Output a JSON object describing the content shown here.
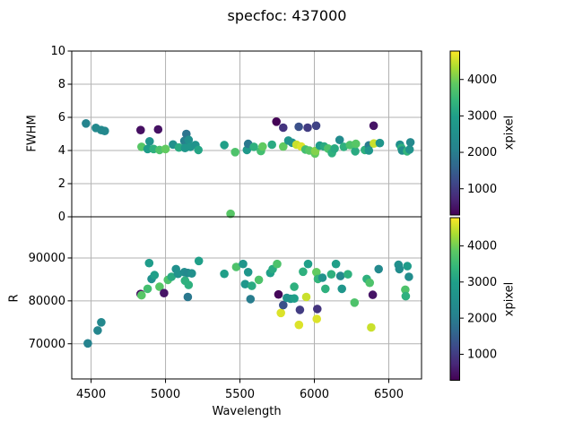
{
  "figure": {
    "title": "specfoc: 437000",
    "background": "#ffffff"
  },
  "colors": {
    "grid": "#b2b2b2",
    "spine": "#000000",
    "text": "#000000",
    "viridis_stops": [
      [
        0.0,
        "#440154"
      ],
      [
        0.1,
        "#482878"
      ],
      [
        0.2,
        "#3e4989"
      ],
      [
        0.3,
        "#31688e"
      ],
      [
        0.4,
        "#26828e"
      ],
      [
        0.5,
        "#21918c"
      ],
      [
        0.6,
        "#1f9e89"
      ],
      [
        0.7,
        "#35b779"
      ],
      [
        0.8,
        "#5ec962"
      ],
      [
        0.9,
        "#aadc32"
      ],
      [
        1.0,
        "#fde725"
      ]
    ]
  },
  "chart_data": [
    {
      "type": "scatter",
      "panel": "top",
      "xlabel": "Wavelength",
      "ylabel": "FWHM",
      "xlim": [
        4370,
        6720
      ],
      "ylim": [
        0,
        10
      ],
      "xticks": [
        4500,
        5000,
        5500,
        6000,
        6500
      ],
      "yticks": [
        0,
        2,
        4,
        6,
        8,
        10
      ],
      "show_x_tick_labels": false,
      "grid": true,
      "marker_radius": 4.8,
      "colorbar": {
        "label": "xpixel",
        "ticks": [
          1000,
          2000,
          3000,
          4000
        ],
        "vmin": 280,
        "vmax": 4780,
        "cmap": "viridis"
      },
      "point_format": [
        "wavelength",
        "fwhm",
        "xpixel"
      ],
      "points": [
        [
          4466,
          5.63,
          2150
        ],
        [
          4532,
          5.36,
          2300
        ],
        [
          4568,
          5.23,
          2300
        ],
        [
          4592,
          5.18,
          2250
        ],
        [
          4833,
          5.23,
          450
        ],
        [
          4950,
          5.27,
          480
        ],
        [
          4839,
          4.22,
          3800
        ],
        [
          4880,
          4.09,
          2900
        ],
        [
          4893,
          4.55,
          2600
        ],
        [
          4920,
          4.09,
          3300
        ],
        [
          4960,
          4.03,
          3700
        ],
        [
          5000,
          4.09,
          3900
        ],
        [
          5050,
          4.36,
          2500
        ],
        [
          5090,
          4.18,
          3200
        ],
        [
          5127,
          4.58,
          2050
        ],
        [
          5140,
          5.0,
          1850
        ],
        [
          5131,
          4.15,
          2700
        ],
        [
          5155,
          4.64,
          2500
        ],
        [
          5167,
          4.22,
          2700
        ],
        [
          5201,
          4.33,
          2600
        ],
        [
          5221,
          4.03,
          3100
        ],
        [
          5395,
          4.33,
          3000
        ],
        [
          5437,
          0.18,
          3800
        ],
        [
          5468,
          3.9,
          3700
        ],
        [
          5547,
          4.03,
          2800
        ],
        [
          5555,
          4.4,
          1900
        ],
        [
          5594,
          4.22,
          3300
        ],
        [
          5641,
          3.97,
          3600
        ],
        [
          5652,
          4.24,
          3900
        ],
        [
          5715,
          4.35,
          3200
        ],
        [
          5745,
          5.74,
          300
        ],
        [
          5791,
          5.38,
          900
        ],
        [
          5791,
          4.24,
          3900
        ],
        [
          5825,
          4.6,
          2700
        ],
        [
          5851,
          4.47,
          2600
        ],
        [
          5880,
          4.35,
          4500
        ],
        [
          5895,
          5.43,
          1300
        ],
        [
          5912,
          4.24,
          4600
        ],
        [
          5940,
          4.06,
          3600
        ],
        [
          5955,
          5.38,
          1000
        ],
        [
          5966,
          4.0,
          3800
        ],
        [
          6004,
          3.82,
          3900
        ],
        [
          6006,
          3.97,
          4100
        ],
        [
          6012,
          5.5,
          1100
        ],
        [
          6036,
          4.29,
          2900
        ],
        [
          6066,
          4.24,
          3200
        ],
        [
          6092,
          4.12,
          3700
        ],
        [
          6118,
          3.85,
          3300
        ],
        [
          6136,
          4.12,
          3200
        ],
        [
          6170,
          4.64,
          2350
        ],
        [
          6198,
          4.22,
          3300
        ],
        [
          6239,
          4.33,
          3700
        ],
        [
          6275,
          3.95,
          3200
        ],
        [
          6279,
          4.4,
          3800
        ],
        [
          6339,
          4.03,
          3300
        ],
        [
          6366,
          4.31,
          2000
        ],
        [
          6366,
          4.0,
          2700
        ],
        [
          6398,
          5.5,
          500
        ],
        [
          6400,
          4.42,
          4500
        ],
        [
          6440,
          4.45,
          2700
        ],
        [
          6575,
          4.35,
          2500
        ],
        [
          6585,
          4.15,
          3300
        ],
        [
          6590,
          4.0,
          2450
        ],
        [
          6623,
          3.95,
          3400
        ],
        [
          6640,
          4.06,
          2600
        ],
        [
          6645,
          4.49,
          2300
        ]
      ]
    },
    {
      "type": "scatter",
      "panel": "bottom",
      "xlabel": "Wavelength",
      "ylabel": "R",
      "xlim": [
        4370,
        6720
      ],
      "ylim": [
        61800,
        99600
      ],
      "xticks": [
        4500,
        5000,
        5500,
        6000,
        6500
      ],
      "yticks": [
        70000,
        80000,
        90000
      ],
      "show_x_tick_labels": true,
      "grid": true,
      "marker_radius": 4.8,
      "colorbar": {
        "label": "xpixel",
        "ticks": [
          1000,
          2000,
          3000,
          4000
        ],
        "vmin": 280,
        "vmax": 4780,
        "cmap": "viridis"
      },
      "point_format": [
        "wavelength",
        "R",
        "xpixel"
      ],
      "points": [
        [
          4478,
          70100,
          2100
        ],
        [
          4544,
          73100,
          2200
        ],
        [
          4568,
          75000,
          2250
        ],
        [
          4833,
          81600,
          450
        ],
        [
          4839,
          81300,
          3800
        ],
        [
          4880,
          82800,
          3600
        ],
        [
          4890,
          88800,
          2900
        ],
        [
          4906,
          85100,
          2500
        ],
        [
          4926,
          86000,
          3000
        ],
        [
          4960,
          83300,
          3800
        ],
        [
          4990,
          81800,
          500
        ],
        [
          5016,
          84900,
          3700
        ],
        [
          5040,
          85600,
          3200
        ],
        [
          5070,
          87400,
          2500
        ],
        [
          5084,
          86300,
          2600
        ],
        [
          5127,
          86700,
          2400
        ],
        [
          5131,
          84700,
          3300
        ],
        [
          5150,
          86500,
          2300
        ],
        [
          5150,
          80900,
          1900
        ],
        [
          5155,
          83700,
          3300
        ],
        [
          5176,
          86400,
          2500
        ],
        [
          5224,
          89300,
          3000
        ],
        [
          5395,
          86300,
          3000
        ],
        [
          5475,
          87900,
          3700
        ],
        [
          5521,
          88600,
          2700
        ],
        [
          5535,
          83900,
          2700
        ],
        [
          5555,
          86700,
          2700
        ],
        [
          5571,
          80400,
          2000
        ],
        [
          5580,
          83500,
          3200
        ],
        [
          5627,
          84900,
          3700
        ],
        [
          5704,
          86500,
          3000
        ],
        [
          5720,
          87400,
          3200
        ],
        [
          5750,
          88600,
          3700
        ],
        [
          5759,
          81500,
          350
        ],
        [
          5775,
          77200,
          4600
        ],
        [
          5791,
          79000,
          1300
        ],
        [
          5815,
          80700,
          2600
        ],
        [
          5840,
          80500,
          2600
        ],
        [
          5865,
          80550,
          3000
        ],
        [
          5865,
          83300,
          3300
        ],
        [
          5896,
          74400,
          4600
        ],
        [
          5903,
          77900,
          1000
        ],
        [
          5924,
          86800,
          3300
        ],
        [
          5946,
          80900,
          4500
        ],
        [
          5958,
          88600,
          3000
        ],
        [
          6014,
          86700,
          3900
        ],
        [
          6016,
          75800,
          4600
        ],
        [
          6020,
          78100,
          900
        ],
        [
          6024,
          85100,
          3400
        ],
        [
          6054,
          85400,
          2600
        ],
        [
          6074,
          82800,
          3300
        ],
        [
          6114,
          86200,
          3300
        ],
        [
          6145,
          88600,
          3000
        ],
        [
          6175,
          85800,
          2300
        ],
        [
          6185,
          82800,
          2700
        ],
        [
          6225,
          86200,
          3300
        ],
        [
          6270,
          79600,
          3700
        ],
        [
          6352,
          85100,
          3300
        ],
        [
          6372,
          84200,
          3700
        ],
        [
          6382,
          73800,
          4500
        ],
        [
          6392,
          81400,
          500
        ],
        [
          6432,
          87400,
          2300
        ],
        [
          6565,
          88400,
          2500
        ],
        [
          6571,
          87400,
          2400
        ],
        [
          6611,
          82600,
          3700
        ],
        [
          6614,
          81100,
          3300
        ],
        [
          6625,
          88100,
          2900
        ],
        [
          6635,
          85600,
          2400
        ]
      ]
    }
  ]
}
